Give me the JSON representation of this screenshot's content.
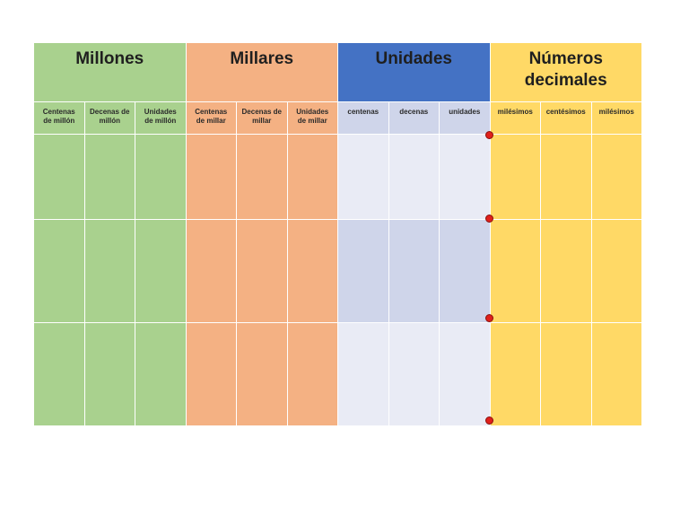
{
  "groups": {
    "millones": "Millones",
    "millares": "Millares",
    "unidades": "Unidades",
    "decimales_line1": "Números",
    "decimales_line2": "decimales"
  },
  "columns": {
    "centenas_millon_1": "Centenas",
    "centenas_millon_2": "de millón",
    "decenas_millon_1": "Decenas de",
    "decenas_millon_2": "millón",
    "unidades_millon_1": "Unidades",
    "unidades_millon_2": "de millón",
    "centenas_millar_1": "Centenas",
    "centenas_millar_2": "de millar",
    "decenas_millar_1": "Decenas de",
    "decenas_millar_2": "millar",
    "unidades_millar_1": "Unidades",
    "unidades_millar_2": "de millar",
    "centenas": "centenas",
    "decenas": "decenas",
    "unidades": "unidades",
    "milesimos_a": "milésimos",
    "centesimos": "centésimos",
    "milesimos_b": "milésimos"
  },
  "colors": {
    "millones": "#a9d18e",
    "millares": "#f4b183",
    "unidades_header": "#4472c4",
    "unidades_dark": "#cfd5ea",
    "unidades_light": "#e9ebf5",
    "decimales": "#ffd966",
    "decimal_point_dot": "#e0201b"
  }
}
